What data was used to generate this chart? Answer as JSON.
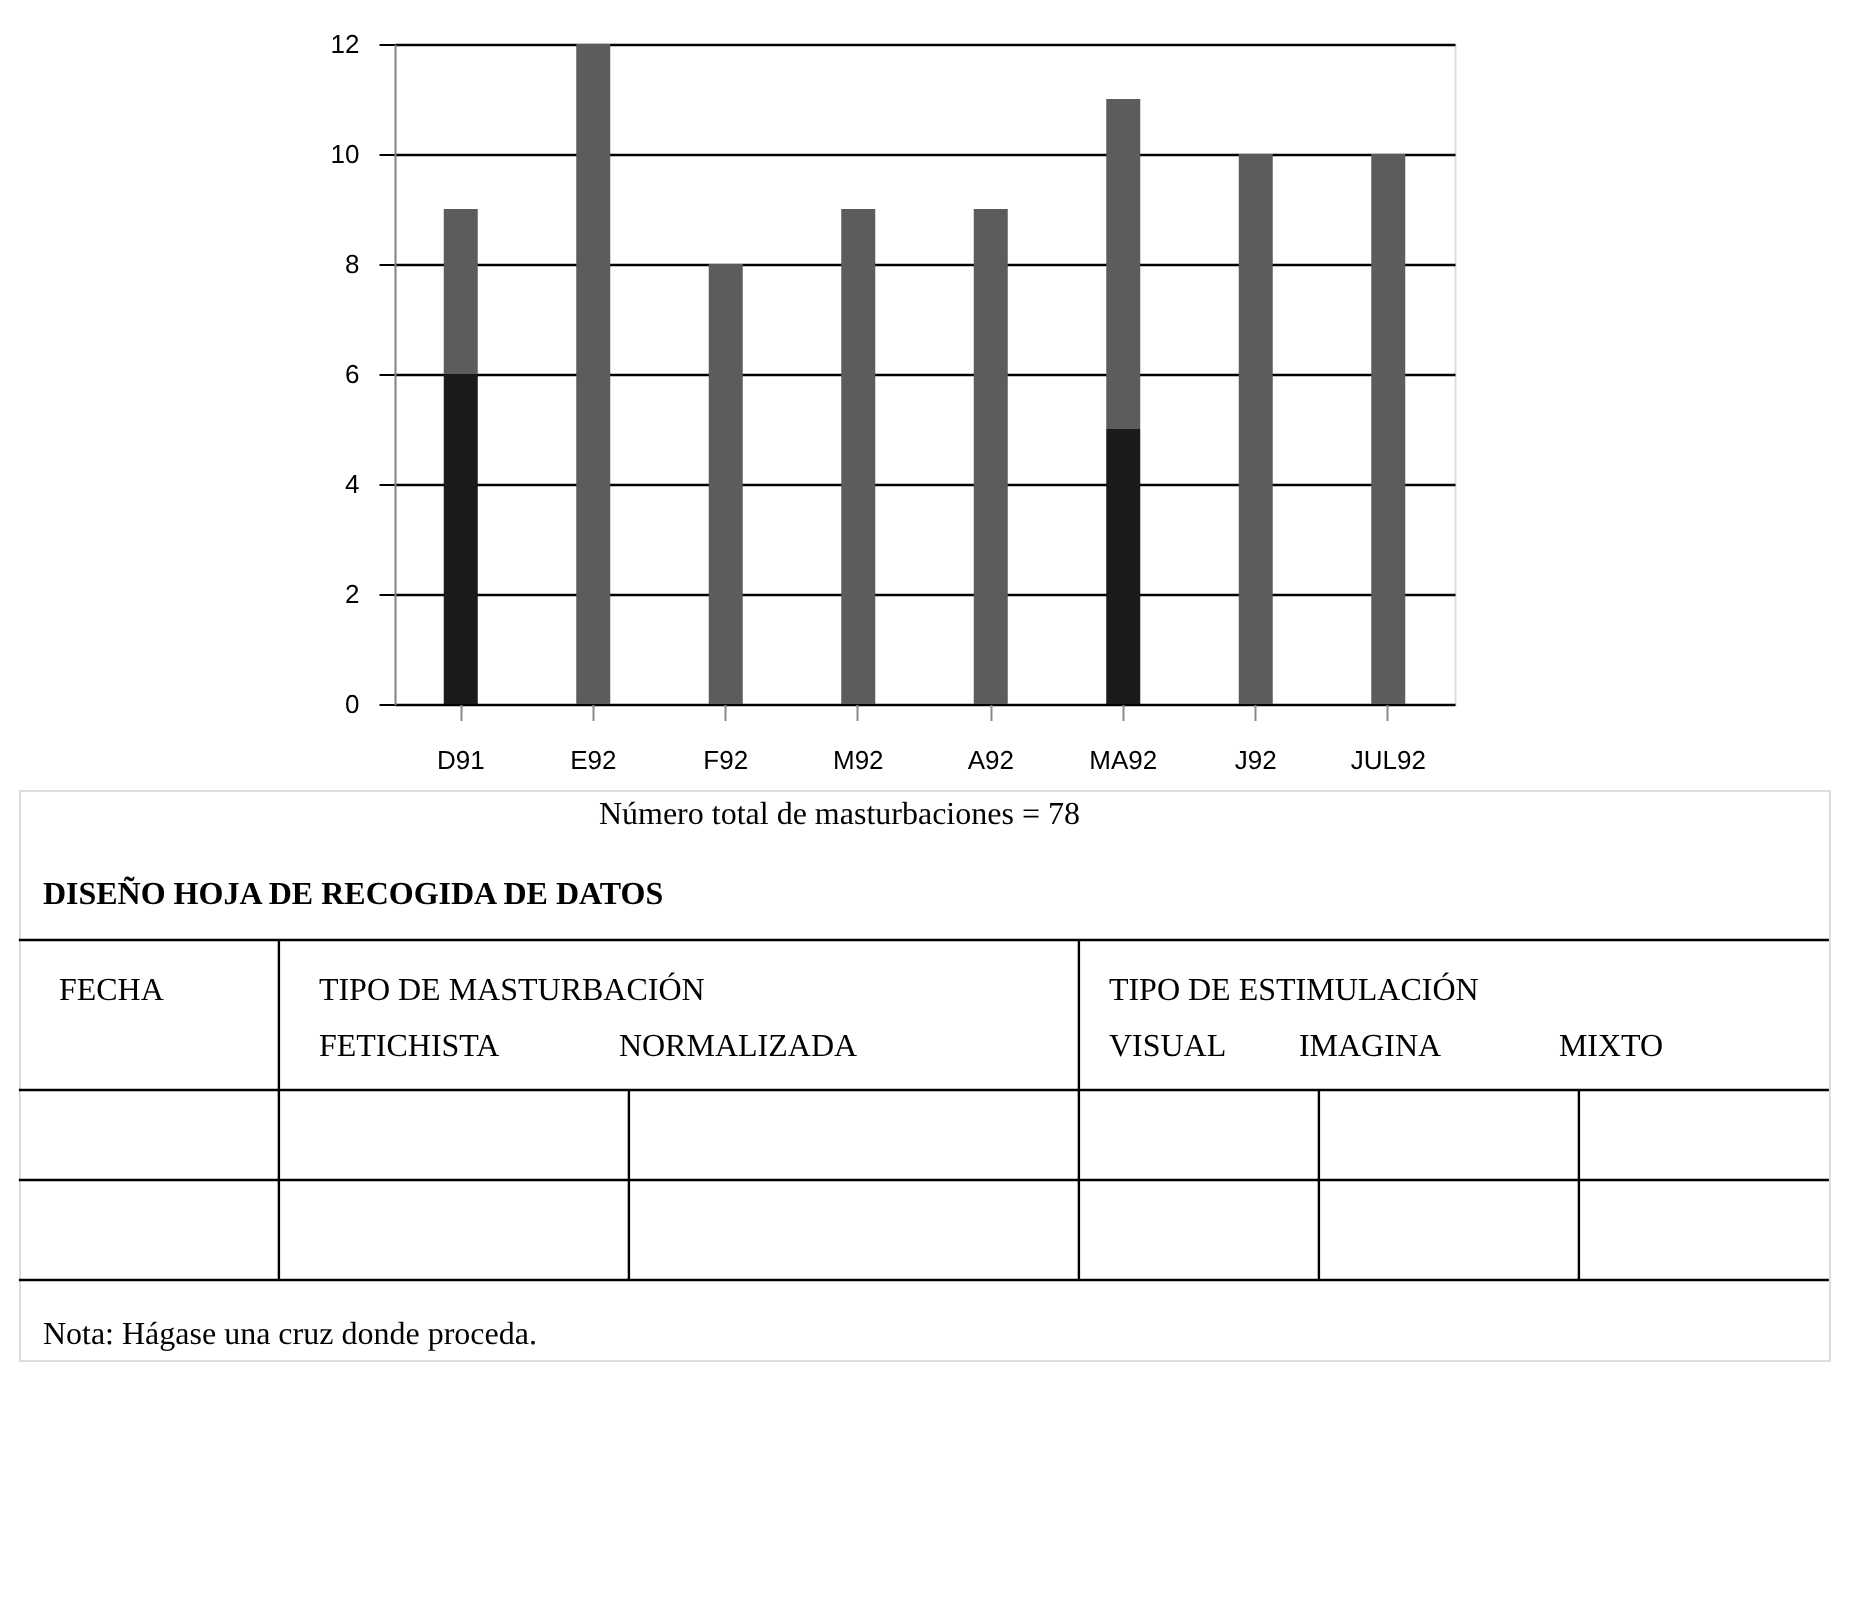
{
  "chart_data": {
    "type": "bar",
    "stacked": true,
    "categories": [
      "D91",
      "E92",
      "F92",
      "M92",
      "A92",
      "MA92",
      "J92",
      "JUL92"
    ],
    "series": [
      {
        "color": "#1a1a1a",
        "values": [
          6,
          0,
          0,
          0,
          0,
          5,
          0,
          0
        ]
      },
      {
        "color": "#5c5c5c",
        "values": [
          3,
          12,
          8,
          9,
          9,
          6,
          10,
          10
        ]
      }
    ],
    "ylim": [
      0,
      12
    ],
    "yticks": [
      0,
      2,
      4,
      6,
      8,
      10,
      12
    ],
    "grid": "y",
    "legend": false,
    "annotations": [
      "Número total de masturbaciones = 78",
      "DISEÑO HOJA DE RECOGIDA DE DATOS",
      "FECHA",
      "TIPO DE MASTURBACIÓN",
      "FETICHISTA",
      "NORMALIZADA",
      "TIPO DE ESTIMULACIÓN",
      "VISUAL",
      "IMAGINA",
      "MIXTO",
      "Nota: Hágase una cruz donde proceda."
    ]
  }
}
